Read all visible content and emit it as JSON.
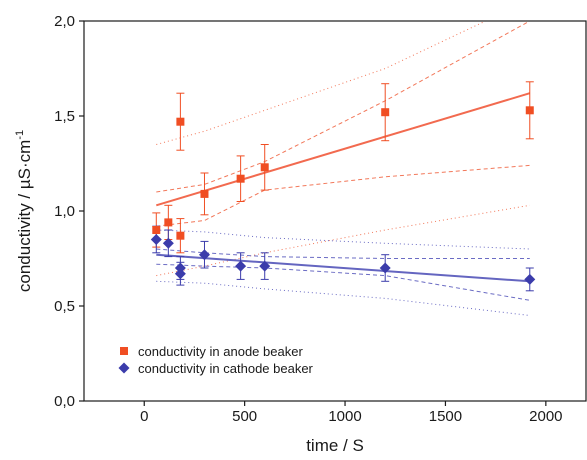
{
  "chart_data": {
    "type": "scatter",
    "title": "",
    "xlabel": "time / S",
    "ylabel_main": "conductivity / µS·cm",
    "ylabel_sup": "-1",
    "xlim": [
      -300,
      2200
    ],
    "ylim": [
      0.0,
      2.0
    ],
    "xticks": [
      0,
      500,
      1000,
      1500,
      2000
    ],
    "xtick_labels": [
      "0",
      "500",
      "1000",
      "1500",
      "2000"
    ],
    "yticks": [
      0.0,
      0.5,
      1.0,
      1.5,
      2.0
    ],
    "ytick_labels": [
      "0,0",
      "0,5",
      "1,0",
      "1,5",
      "2,0"
    ],
    "grid": false,
    "legend_position": "lower-left",
    "series": [
      {
        "name": "conductivity in anode beaker",
        "marker": "square",
        "color": "#f04e23",
        "points": [
          {
            "x": 60,
            "y": 0.9,
            "err": 0.09
          },
          {
            "x": 120,
            "y": 0.94,
            "err": 0.09
          },
          {
            "x": 180,
            "y": 0.87,
            "err": 0.09
          },
          {
            "x": 180,
            "y": 1.47,
            "err": 0.15
          },
          {
            "x": 300,
            "y": 1.09,
            "err": 0.11
          },
          {
            "x": 480,
            "y": 1.17,
            "err": 0.12
          },
          {
            "x": 600,
            "y": 1.23,
            "err": 0.12
          },
          {
            "x": 1200,
            "y": 1.52,
            "err": 0.15
          },
          {
            "x": 1920,
            "y": 1.53,
            "err": 0.15
          }
        ],
        "fit": {
          "x": [
            60,
            1920
          ],
          "y": [
            1.03,
            1.62
          ]
        },
        "confidence_upper": {
          "x": [
            60,
            300,
            600,
            1200,
            1920
          ],
          "y": [
            1.1,
            1.14,
            1.26,
            1.58,
            2.0
          ]
        },
        "confidence_lower": {
          "x": [
            60,
            300,
            600,
            1200,
            1920
          ],
          "y": [
            0.92,
            0.95,
            1.11,
            1.18,
            1.24
          ]
        },
        "prediction_upper": {
          "x": [
            60,
            300,
            600,
            1200,
            1700
          ],
          "y": [
            1.35,
            1.42,
            1.53,
            1.75,
            2.0
          ]
        },
        "prediction_lower": {
          "x": [
            60,
            300,
            600,
            1200,
            1920
          ],
          "y": [
            0.66,
            0.71,
            0.78,
            0.9,
            1.03
          ]
        }
      },
      {
        "name": "conductivity in cathode beaker",
        "marker": "diamond",
        "color": "#3b3cab",
        "points": [
          {
            "x": 60,
            "y": 0.85,
            "err": 0.07
          },
          {
            "x": 120,
            "y": 0.83,
            "err": 0.07
          },
          {
            "x": 180,
            "y": 0.67,
            "err": 0.06
          },
          {
            "x": 180,
            "y": 0.7,
            "err": 0.06
          },
          {
            "x": 300,
            "y": 0.77,
            "err": 0.07
          },
          {
            "x": 480,
            "y": 0.71,
            "err": 0.07
          },
          {
            "x": 600,
            "y": 0.71,
            "err": 0.07
          },
          {
            "x": 1200,
            "y": 0.7,
            "err": 0.07
          },
          {
            "x": 1920,
            "y": 0.64,
            "err": 0.06
          }
        ],
        "fit": {
          "x": [
            60,
            1920
          ],
          "y": [
            0.77,
            0.63
          ]
        },
        "confidence_upper": {
          "x": [
            60,
            300,
            600,
            1200,
            1920
          ],
          "y": [
            0.8,
            0.78,
            0.76,
            0.75,
            0.75
          ]
        },
        "confidence_lower": {
          "x": [
            60,
            300,
            600,
            1200,
            1920
          ],
          "y": [
            0.72,
            0.71,
            0.7,
            0.66,
            0.53
          ]
        },
        "prediction_upper": {
          "x": [
            60,
            300,
            600,
            1200,
            1920
          ],
          "y": [
            0.9,
            0.89,
            0.86,
            0.83,
            0.8
          ]
        },
        "prediction_lower": {
          "x": [
            60,
            300,
            600,
            1200,
            1920
          ],
          "y": [
            0.63,
            0.62,
            0.59,
            0.54,
            0.45
          ]
        }
      }
    ]
  }
}
